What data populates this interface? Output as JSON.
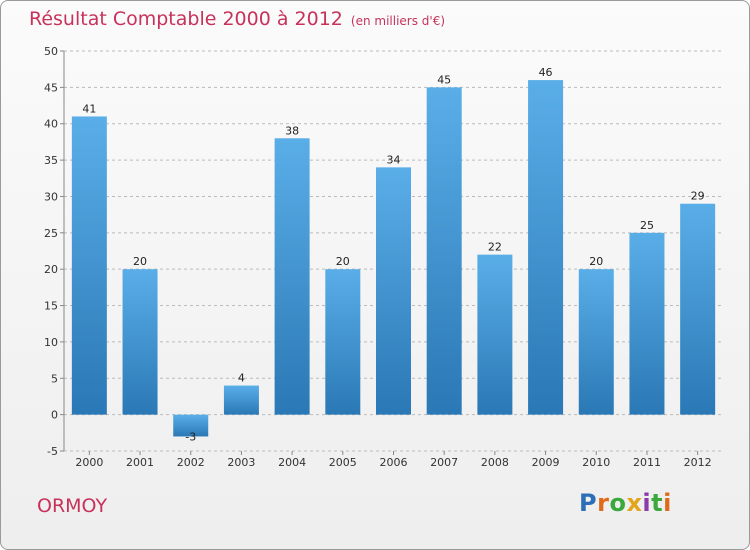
{
  "chart_data": {
    "type": "bar",
    "title": "Résultat Comptable 2000 à 2012",
    "unit_note": "(en milliers d'€)",
    "categories": [
      "2000",
      "2001",
      "2002",
      "2003",
      "2004",
      "2005",
      "2006",
      "2007",
      "2008",
      "2009",
      "2010",
      "2011",
      "2012"
    ],
    "values": [
      41,
      20,
      -3,
      4,
      38,
      20,
      34,
      45,
      22,
      46,
      20,
      25,
      29
    ],
    "yticks": [
      -5,
      0,
      5,
      10,
      15,
      20,
      25,
      30,
      35,
      40,
      45,
      50
    ],
    "ylim": [
      -5,
      50
    ],
    "xlabel": "",
    "ylabel": "",
    "grid": true,
    "legend": "none",
    "colors": {
      "bar_top": "#5aaee8",
      "bar_bottom": "#2a78b5",
      "grid": "#bbbbbb",
      "axis": "#888888"
    }
  },
  "place_name": "ORMOY",
  "logo": {
    "letters": [
      "P",
      "r",
      "o",
      "x",
      "i",
      "t",
      "i"
    ],
    "colors": [
      "#2d6fb7",
      "#e06a1b",
      "#3aa83a",
      "#e3a41c",
      "#8c3aa8",
      "#3aa83a",
      "#e06a1b"
    ]
  },
  "colors": {
    "title": "#c8325a"
  }
}
